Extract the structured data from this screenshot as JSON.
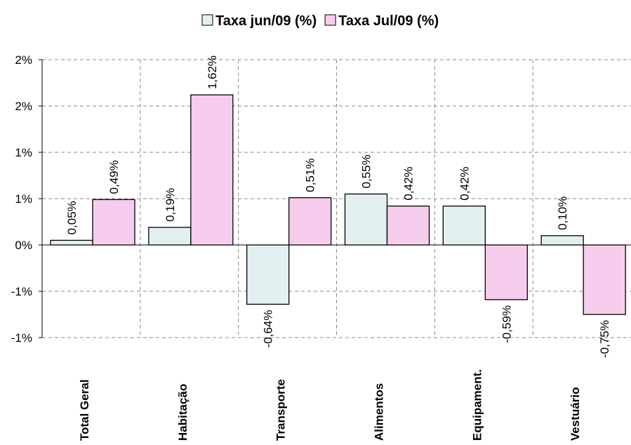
{
  "chart_data": {
    "type": "bar",
    "categories": [
      "Total Geral",
      "Habitação",
      "Transporte",
      "Alimentos",
      "Equipament.",
      "Vestuário"
    ],
    "series": [
      {
        "name": "Taxa jun/09 (%)",
        "color": "#e4eff1",
        "values": [
          0.05,
          0.19,
          -0.64,
          0.55,
          0.42,
          0.1
        ],
        "value_labels": [
          "0,05%",
          "0,19%",
          "-0,64%",
          "0,55%",
          "0,42%",
          "0,10%"
        ]
      },
      {
        "name": "Taxa Jul/09 (%)",
        "color": "#f7cdee",
        "values": [
          0.49,
          1.62,
          0.51,
          0.42,
          -0.59,
          -0.75
        ],
        "value_labels": [
          "0,49%",
          "1,62%",
          "0,51%",
          "0,42%",
          "-0,59%",
          "-0,75%"
        ]
      }
    ],
    "ylim": [
      -1,
      2
    ],
    "yticks": [
      {
        "value": -1,
        "label": "-1%"
      },
      {
        "value": -0.5,
        "label": "-1%"
      },
      {
        "value": 0,
        "label": "0%"
      },
      {
        "value": 0.5,
        "label": "1%"
      },
      {
        "value": 1,
        "label": "1%"
      },
      {
        "value": 1.5,
        "label": "2%"
      },
      {
        "value": 2,
        "label": "2%"
      }
    ],
    "grid": true,
    "legend": "top"
  }
}
